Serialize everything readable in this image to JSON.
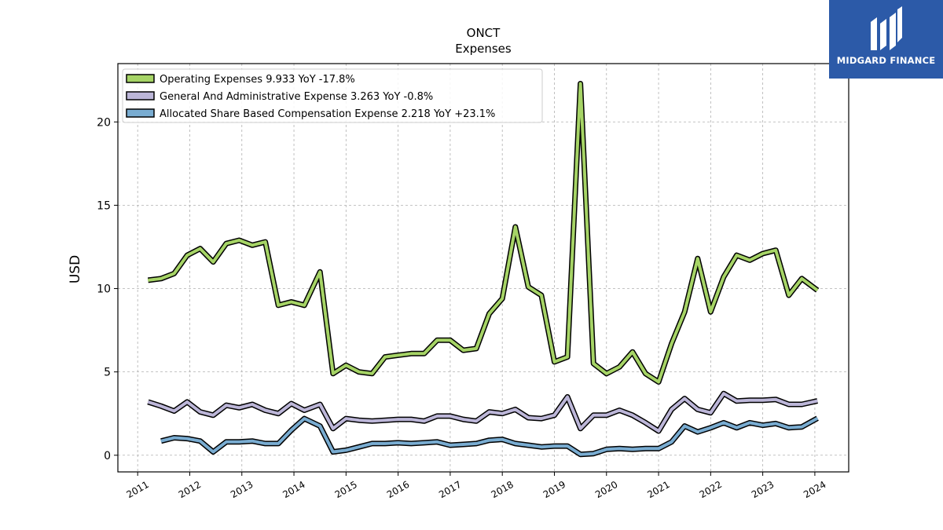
{
  "chart_data": {
    "type": "line",
    "title": "ONCT",
    "subtitle": "Expenses",
    "ylabel": "USD",
    "xlabel": "",
    "ylim": [
      -1,
      23.5
    ],
    "xlim": [
      2010.62,
      2024.65
    ],
    "yticks": [
      0,
      5,
      10,
      15,
      20
    ],
    "xticks": [
      "2011",
      "2012",
      "2013",
      "2014",
      "2015",
      "2016",
      "2017",
      "2018",
      "2019",
      "2020",
      "2021",
      "2022",
      "2023",
      "2024"
    ],
    "grid": true,
    "legend_position": "top-left",
    "series": [
      {
        "name": "Operating Expenses  9.933 YoY -17.8%",
        "color": "#a6d466",
        "x": [
          2011.2,
          2011.45,
          2011.7,
          2011.95,
          2012.2,
          2012.45,
          2012.7,
          2012.95,
          2013.2,
          2013.45,
          2013.7,
          2013.95,
          2014.2,
          2014.5,
          2014.75,
          2015.0,
          2015.25,
          2015.5,
          2015.75,
          2016.0,
          2016.25,
          2016.5,
          2016.75,
          2017.0,
          2017.25,
          2017.5,
          2017.75,
          2018.0,
          2018.25,
          2018.5,
          2018.75,
          2019.0,
          2019.25,
          2019.5,
          2019.75,
          2020.0,
          2020.25,
          2020.5,
          2020.75,
          2021.0,
          2021.25,
          2021.5,
          2021.75,
          2022.0,
          2022.25,
          2022.5,
          2022.75,
          2023.0,
          2023.25,
          2023.5,
          2023.75,
          2024.05
        ],
        "values": [
          10.5,
          10.6,
          10.9,
          12.0,
          12.4,
          11.6,
          12.7,
          12.9,
          12.6,
          12.8,
          9.0,
          9.2,
          9.0,
          11.0,
          4.9,
          5.4,
          5.0,
          4.9,
          5.9,
          6.0,
          6.1,
          6.1,
          6.9,
          6.9,
          6.3,
          6.4,
          8.5,
          9.4,
          13.7,
          10.1,
          9.6,
          5.6,
          5.9,
          22.3,
          5.5,
          4.9,
          5.3,
          6.2,
          4.9,
          4.4,
          6.7,
          8.6,
          11.8,
          8.6,
          10.7,
          12.0,
          11.7,
          12.1,
          12.3,
          9.6,
          10.6,
          9.9
        ]
      },
      {
        "name": "General And Administrative Expense  3.263 YoY -0.8%",
        "color": "#bcb6d8",
        "x": [
          2011.2,
          2011.45,
          2011.7,
          2011.95,
          2012.2,
          2012.45,
          2012.7,
          2012.95,
          2013.2,
          2013.45,
          2013.7,
          2013.95,
          2014.2,
          2014.5,
          2014.75,
          2015.0,
          2015.25,
          2015.5,
          2015.75,
          2016.0,
          2016.25,
          2016.5,
          2016.75,
          2017.0,
          2017.25,
          2017.5,
          2017.75,
          2018.0,
          2018.25,
          2018.5,
          2018.75,
          2019.0,
          2019.25,
          2019.5,
          2019.75,
          2020.0,
          2020.25,
          2020.5,
          2020.75,
          2021.0,
          2021.25,
          2021.5,
          2021.75,
          2022.0,
          2022.25,
          2022.5,
          2022.75,
          2023.0,
          2023.25,
          2023.5,
          2023.75,
          2024.05
        ],
        "values": [
          3.2,
          2.95,
          2.65,
          3.2,
          2.6,
          2.4,
          3.0,
          2.85,
          3.05,
          2.7,
          2.5,
          3.1,
          2.7,
          3.05,
          1.6,
          2.2,
          2.1,
          2.05,
          2.1,
          2.15,
          2.15,
          2.05,
          2.35,
          2.35,
          2.15,
          2.05,
          2.6,
          2.5,
          2.75,
          2.25,
          2.2,
          2.4,
          3.5,
          1.6,
          2.4,
          2.4,
          2.7,
          2.4,
          1.95,
          1.45,
          2.75,
          3.4,
          2.75,
          2.55,
          3.7,
          3.25,
          3.3,
          3.3,
          3.35,
          3.05,
          3.05,
          3.26
        ]
      },
      {
        "name": "Allocated Share Based Compensation Expense  2.218 YoY +23.1%",
        "color": "#79acd1",
        "x": [
          2011.45,
          2011.7,
          2011.95,
          2012.2,
          2012.45,
          2012.7,
          2012.95,
          2013.2,
          2013.45,
          2013.7,
          2013.95,
          2014.2,
          2014.5,
          2014.75,
          2015.0,
          2015.25,
          2015.5,
          2015.75,
          2016.0,
          2016.25,
          2016.5,
          2016.75,
          2017.0,
          2017.25,
          2017.5,
          2017.75,
          2018.0,
          2018.25,
          2018.5,
          2018.75,
          2019.0,
          2019.25,
          2019.5,
          2019.75,
          2020.0,
          2020.25,
          2020.5,
          2020.75,
          2021.0,
          2021.25,
          2021.5,
          2021.75,
          2022.0,
          2022.25,
          2022.5,
          2022.75,
          2023.0,
          2023.25,
          2023.5,
          2023.75,
          2024.05
        ],
        "values": [
          0.85,
          1.05,
          1.0,
          0.85,
          0.2,
          0.8,
          0.8,
          0.85,
          0.7,
          0.7,
          1.5,
          2.2,
          1.75,
          0.2,
          0.3,
          0.5,
          0.7,
          0.7,
          0.75,
          0.7,
          0.75,
          0.8,
          0.6,
          0.65,
          0.7,
          0.9,
          0.95,
          0.7,
          0.6,
          0.5,
          0.55,
          0.55,
          0.05,
          0.1,
          0.35,
          0.4,
          0.35,
          0.4,
          0.4,
          0.8,
          1.75,
          1.4,
          1.65,
          1.95,
          1.65,
          1.95,
          1.8,
          1.9,
          1.65,
          1.7,
          2.22
        ]
      }
    ]
  },
  "logo": {
    "text": "MIDGARD FINANCE",
    "background": "#2c5aa8"
  }
}
